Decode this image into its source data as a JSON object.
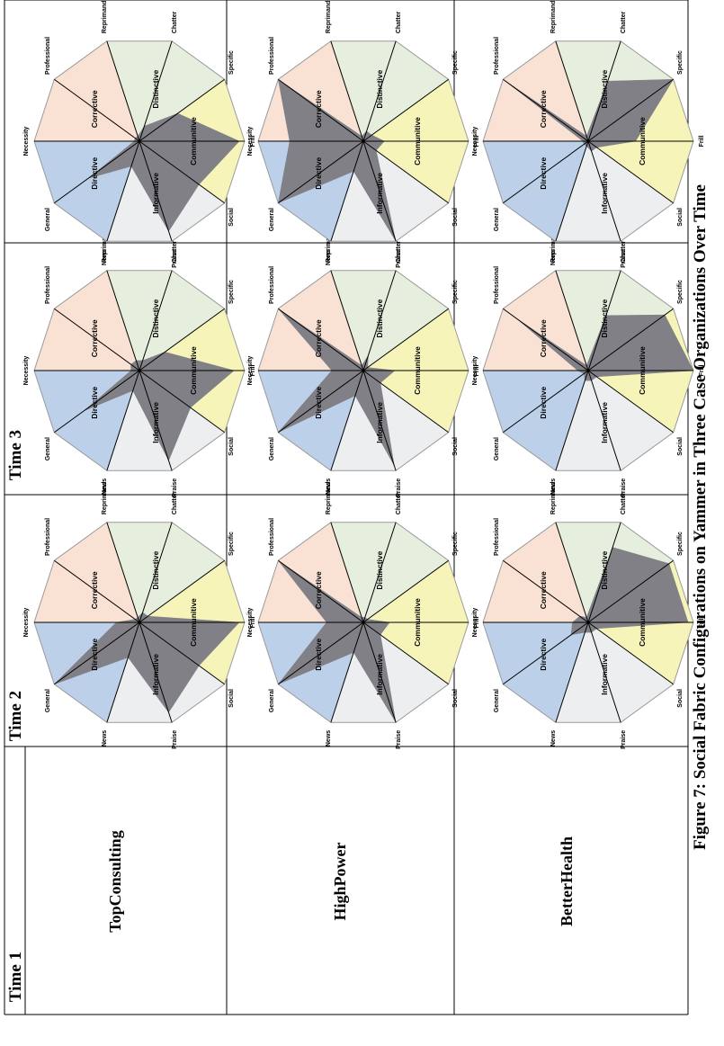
{
  "caption": "Figure 7: Social Fabric Configurations on Yammer in Three Case Organizations Over Time",
  "time_headers": [
    "Time 1",
    "Time 2",
    "Time 3"
  ],
  "organizations": [
    "TopConsulting",
    "HighPower",
    "BetterHealth"
  ],
  "chart_data": {
    "type": "radar",
    "axes": [
      "Necessity",
      "General",
      "News",
      "Praise",
      "Social",
      "Frill",
      "Specific",
      "Chatter",
      "Reprimand",
      "Professional"
    ],
    "sectors": [
      {
        "name": "Directive",
        "color": "#bcd0ea"
      },
      {
        "name": "Informative",
        "color": "#eceeef"
      },
      {
        "name": "Communitive",
        "color": "#f7f4b9"
      },
      {
        "name": "Distinctive",
        "color": "#e6eedd"
      },
      {
        "name": "Corrective",
        "color": "#f9e1d3"
      }
    ],
    "overlay_color": "#808086",
    "range": [
      0,
      1
    ],
    "panels": [
      {
        "organization": "TopConsulting",
        "time": "Time 1",
        "values": [
          0.22,
          1.0,
          0.35,
          0.9,
          0.7,
          0.95,
          0.1,
          0.1,
          0.05,
          0.05
        ]
      },
      {
        "organization": "TopConsulting",
        "time": "Time 2",
        "values": [
          0.08,
          0.65,
          0.2,
          0.9,
          0.6,
          0.9,
          0.3,
          0.1,
          0.1,
          0.1
        ]
      },
      {
        "organization": "TopConsulting",
        "time": "Time 3",
        "values": [
          0.05,
          0.6,
          0.25,
          0.9,
          0.7,
          0.95,
          0.45,
          0.15,
          0.05,
          0.05
        ]
      },
      {
        "organization": "HighPower",
        "time": "Time 1",
        "values": [
          0.35,
          1.0,
          0.3,
          1.0,
          0.2,
          0.25,
          0.05,
          0.05,
          0.05,
          1.0
        ]
      },
      {
        "organization": "HighPower",
        "time": "Time 2",
        "values": [
          0.3,
          1.0,
          0.25,
          0.95,
          0.2,
          0.3,
          0.05,
          0.15,
          0.05,
          1.0
        ]
      },
      {
        "organization": "HighPower",
        "time": "Time 3",
        "values": [
          0.7,
          1.0,
          0.3,
          1.0,
          0.15,
          0.2,
          0.1,
          0.1,
          0.05,
          1.0
        ]
      },
      {
        "organization": "BetterHealth",
        "time": "Time 1",
        "values": [
          0.15,
          0.2,
          0.1,
          0.1,
          0.1,
          0.95,
          0.95,
          0.75,
          0.05,
          0.1
        ]
      },
      {
        "organization": "BetterHealth",
        "time": "Time 2",
        "values": [
          0.1,
          0.05,
          0.1,
          0.1,
          0.1,
          1.0,
          0.9,
          0.55,
          0.05,
          0.85
        ]
      },
      {
        "organization": "BetterHealth",
        "time": "Time 3",
        "values": [
          0.05,
          0.05,
          0.05,
          0.1,
          0.1,
          0.45,
          1.0,
          0.6,
          0.05,
          1.0
        ]
      }
    ]
  }
}
